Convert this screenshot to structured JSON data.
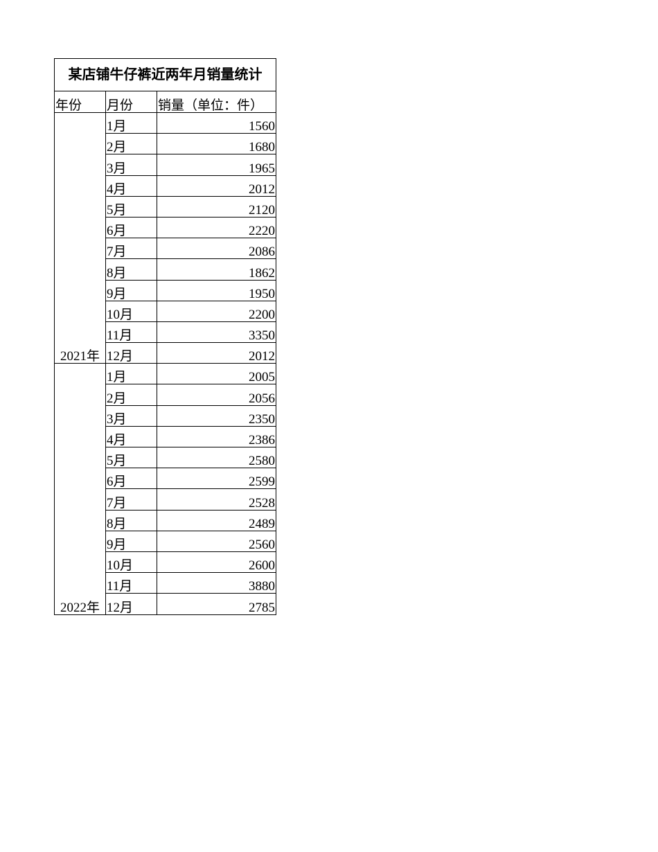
{
  "table": {
    "title": "某店铺牛仔裤近两年月销量统计",
    "headers": [
      "年份",
      "月份",
      "销量（单位：件）"
    ],
    "groups": [
      {
        "year": "2021年",
        "rows": [
          [
            "1月",
            "1560"
          ],
          [
            "2月",
            "1680"
          ],
          [
            "3月",
            "1965"
          ],
          [
            "4月",
            "2012"
          ],
          [
            "5月",
            "2120"
          ],
          [
            "6月",
            "2220"
          ],
          [
            "7月",
            "2086"
          ],
          [
            "8月",
            "1862"
          ],
          [
            "9月",
            "1950"
          ],
          [
            "10月",
            "2200"
          ],
          [
            "11月",
            "3350"
          ],
          [
            "12月",
            "2012"
          ]
        ]
      },
      {
        "year": "2022年",
        "rows": [
          [
            "1月",
            "2005"
          ],
          [
            "2月",
            "2056"
          ],
          [
            "3月",
            "2350"
          ],
          [
            "4月",
            "2386"
          ],
          [
            "5月",
            "2580"
          ],
          [
            "6月",
            "2599"
          ],
          [
            "7月",
            "2528"
          ],
          [
            "8月",
            "2489"
          ],
          [
            "9月",
            "2560"
          ],
          [
            "10月",
            "2600"
          ],
          [
            "11月",
            "3880"
          ],
          [
            "12月",
            "2785"
          ]
        ]
      }
    ]
  }
}
